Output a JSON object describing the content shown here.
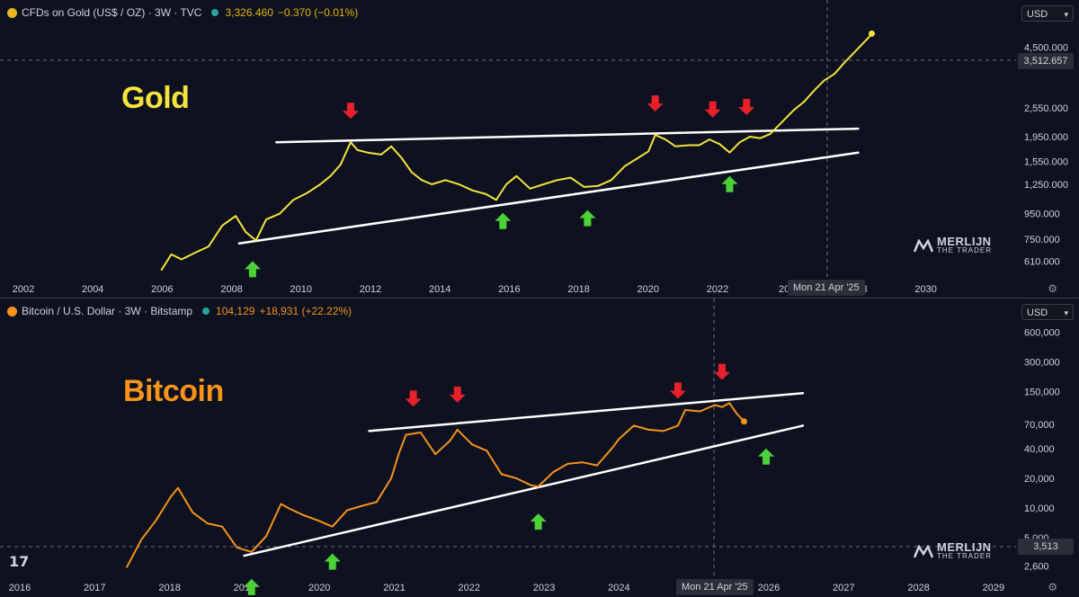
{
  "gold": {
    "legend": {
      "title": "CFDs on Gold (US$ / OZ) · 3W · TVC",
      "price": "3,326.460",
      "change": "−0.370 (−0.01%)"
    },
    "big_label": "Gold",
    "currency": "USD",
    "crosshair_price": "3,512.657",
    "crosshair_date": "Mon 21 Apr '25",
    "watermark_name": "MERLIJN",
    "watermark_sub": "THE TRADER",
    "colors": {
      "series": "#f5e33b",
      "label": "#f5e33b",
      "trend": "#ffffff",
      "down_arrow": "#e8202a",
      "up_arrow": "#4cd137"
    },
    "icons": [
      "gold-coin-icon",
      "status-dot-icon",
      "down-arrow-icon",
      "up-arrow-icon",
      "gear-icon",
      "chevron-down-icon",
      "merlijn-logo-icon"
    ]
  },
  "bitcoin": {
    "legend": {
      "title": "Bitcoin / U.S. Dollar · 3W · Bitstamp",
      "price": "104,129",
      "change": "+18,931 (+22.22%)"
    },
    "big_label": "Bitcoin",
    "currency": "USD",
    "crosshair_price": "3,513",
    "crosshair_date": "Mon 21 Apr '25",
    "watermark_name": "MERLIJN",
    "watermark_sub": "THE TRADER",
    "tv_logo": "17",
    "colors": {
      "series": "#f7931a",
      "label": "#f7931a",
      "trend": "#ffffff",
      "down_arrow": "#e8202a",
      "up_arrow": "#4cd137"
    }
  },
  "chart_data": [
    {
      "type": "line",
      "title": "CFDs on Gold (US$ / OZ) · 3W · TVC",
      "scale": "log",
      "x_ticks": [
        "2002",
        "2004",
        "2006",
        "2008",
        "2010",
        "2012",
        "2014",
        "2016",
        "2018",
        "2020",
        "2022",
        "202",
        "2028",
        "2030"
      ],
      "y_ticks": [
        "4,500.000",
        "3,512.657",
        "2,550.000",
        "1,950.000",
        "1,550.000",
        "1,250.000",
        "950.000",
        "750.000",
        "610.000"
      ],
      "y_tick_values": [
        4500,
        3512.657,
        2550,
        1950,
        1550,
        1250,
        950,
        750,
        610
      ],
      "ylim": [
        540,
        6000
      ],
      "xlim": [
        2001.5,
        2031.0
      ],
      "series": [
        {
          "x": [
            2006.0,
            2006.3,
            2006.6,
            2007.0,
            2007.4,
            2007.8,
            2008.2,
            2008.5,
            2008.8,
            2009.1,
            2009.5,
            2009.9,
            2010.3,
            2010.7,
            2011.0,
            2011.3,
            2011.6,
            2011.8,
            2012.1,
            2012.5,
            2012.8,
            2013.1,
            2013.4,
            2013.7,
            2014.0,
            2014.4,
            2014.8,
            2015.2,
            2015.6,
            2015.9,
            2016.2,
            2016.5,
            2016.9,
            2017.3,
            2017.7,
            2018.1,
            2018.5,
            2018.9,
            2019.3,
            2019.7,
            2020.1,
            2020.4,
            2020.6,
            2020.9,
            2021.2,
            2021.6,
            2021.9,
            2022.2,
            2022.5,
            2022.8,
            2023.1,
            2023.4,
            2023.7,
            2024.0,
            2024.3,
            2024.7,
            2025.0,
            2025.3,
            2025.6,
            2025.9,
            2026.2,
            2026.5,
            2026.9,
            2027.0
          ],
          "y": [
            560,
            650,
            620,
            660,
            700,
            850,
            930,
            800,
            740,
            900,
            950,
            1080,
            1150,
            1250,
            1350,
            1500,
            1850,
            1720,
            1680,
            1650,
            1780,
            1600,
            1400,
            1300,
            1250,
            1300,
            1250,
            1180,
            1140,
            1080,
            1250,
            1350,
            1200,
            1250,
            1300,
            1330,
            1220,
            1230,
            1300,
            1480,
            1600,
            1700,
            1980,
            1900,
            1780,
            1800,
            1800,
            1900,
            1820,
            1680,
            1850,
            1950,
            1920,
            2000,
            2200,
            2500,
            2700,
            3000,
            3300,
            3500,
            3900,
            4300,
            4900,
            5100
          ]
        }
      ],
      "trendlines": [
        {
          "name": "resistance",
          "x": [
            2009.4,
            2026.6
          ],
          "y": [
            1850,
            2100
          ]
        },
        {
          "name": "support",
          "x": [
            2008.3,
            2026.6
          ],
          "y": [
            720,
            1680
          ]
        }
      ],
      "annotations": {
        "down_arrows": [
          2011.6,
          2020.6,
          2022.3,
          2023.3
        ],
        "up_arrows": [
          2008.7,
          2016.1,
          2018.6,
          2022.8
        ]
      }
    },
    {
      "type": "line",
      "title": "Bitcoin / U.S. Dollar · 3W · Bitstamp",
      "scale": "log",
      "x_ticks": [
        "2016",
        "2017",
        "2018",
        "2019",
        "2020",
        "2021",
        "2022",
        "2023",
        "2024",
        "2025",
        "2026",
        "2027",
        "2028",
        "2029"
      ],
      "y_ticks": [
        "600,000",
        "300,000",
        "150,000",
        "70,000",
        "40,000",
        "20,000",
        "10,000",
        "5,000",
        "3,513",
        "2,600"
      ],
      "y_tick_values": [
        600000,
        300000,
        150000,
        70000,
        40000,
        20000,
        10000,
        5000,
        3513,
        2600
      ],
      "ylim": [
        2000,
        700000
      ],
      "xlim": [
        2015.7,
        2029.4
      ],
      "series": [
        {
          "x": [
            2017.3,
            2017.5,
            2017.7,
            2017.9,
            2018.0,
            2018.2,
            2018.4,
            2018.6,
            2018.8,
            2019.0,
            2019.2,
            2019.4,
            2019.5,
            2019.7,
            2019.9,
            2020.1,
            2020.3,
            2020.5,
            2020.7,
            2020.9,
            2021.0,
            2021.1,
            2021.3,
            2021.5,
            2021.7,
            2021.8,
            2022.0,
            2022.2,
            2022.4,
            2022.6,
            2022.8,
            2022.9,
            2023.1,
            2023.3,
            2023.5,
            2023.7,
            2023.9,
            2024.0,
            2024.2,
            2024.4,
            2024.6,
            2024.8,
            2024.9,
            2025.1,
            2025.3,
            2025.4,
            2025.5,
            2025.6,
            2025.7
          ],
          "y": [
            2500,
            4800,
            7500,
            13000,
            16000,
            9000,
            7000,
            6500,
            4000,
            3600,
            5200,
            11000,
            10000,
            8500,
            7500,
            6500,
            9500,
            10500,
            11500,
            20000,
            35000,
            55000,
            58000,
            35000,
            48000,
            62000,
            44000,
            38000,
            22000,
            20000,
            17000,
            16500,
            23000,
            28000,
            29000,
            27000,
            40000,
            50000,
            68000,
            62000,
            60000,
            68000,
            98000,
            95000,
            110000,
            105000,
            115000,
            90000,
            75000
          ]
        }
      ],
      "trendlines": [
        {
          "name": "resistance",
          "x": [
            2020.6,
            2026.5
          ],
          "y": [
            60000,
            145000
          ]
        },
        {
          "name": "support",
          "x": [
            2018.9,
            2026.5
          ],
          "y": [
            3300,
            68000
          ]
        }
      ],
      "annotations": {
        "down_arrows": [
          2021.2,
          2021.8,
          2024.8,
          2025.4
        ],
        "up_arrows": [
          2019.0,
          2020.1,
          2022.9,
          2026.0
        ]
      }
    }
  ]
}
